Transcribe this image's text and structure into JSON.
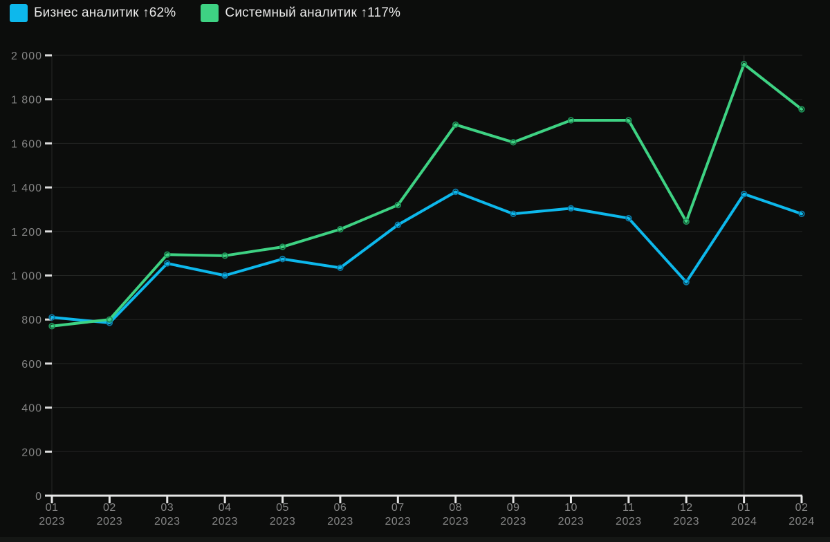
{
  "colors": {
    "background": "#0c0d0c",
    "grid_line": "#232523",
    "axis_line": "#e6e6e6",
    "tick_mark": "#dedede",
    "axis_label": "#858585",
    "legend_text": "#e9e9e9",
    "left_vertical_line": "#1e201f",
    "year_vertical_line": "#2c2e2d",
    "series_blue": "#0db8ec",
    "series_blue_ring": "#0a7aa6",
    "series_green": "#3ed283",
    "series_green_ring": "#1d9257"
  },
  "legend": {
    "items": [
      {
        "label": "Бизнес аналитик ↑62%",
        "color": "#0db8ec"
      },
      {
        "label": "Системный аналитик ↑117%",
        "color": "#3ed283"
      }
    ]
  },
  "chart_data": {
    "type": "line",
    "title": "",
    "xlabel": "",
    "ylabel": "",
    "ylim": [
      0,
      2000
    ],
    "ytick_step": 200,
    "ytick_labels": [
      "0",
      "200",
      "400",
      "600",
      "800",
      "1 000",
      "1 200",
      "1 400",
      "1 600",
      "1 800",
      "2 000"
    ],
    "grid": "horizontal gridlines every 200; faint vertical gridlines at first point and at 01 2024",
    "legend_position": "top-left",
    "x_months": [
      "01",
      "02",
      "03",
      "04",
      "05",
      "06",
      "07",
      "08",
      "09",
      "10",
      "11",
      "12",
      "01",
      "02"
    ],
    "x_years": [
      "2023",
      "2023",
      "2023",
      "2023",
      "2023",
      "2023",
      "2023",
      "2023",
      "2023",
      "2023",
      "2023",
      "2023",
      "2024",
      "2024"
    ],
    "year_separator_index": 12,
    "series": [
      {
        "name": "Бизнес аналитик",
        "growth": "↑62%",
        "color": "#0db8ec",
        "marker_ring_color": "#0a7aa6",
        "values": [
          810,
          785,
          1055,
          1000,
          1075,
          1035,
          1230,
          1380,
          1280,
          1305,
          1260,
          970,
          1370,
          1280
        ]
      },
      {
        "name": "Системный аналитик",
        "growth": "↑117%",
        "color": "#3ed283",
        "marker_ring_color": "#1d9257",
        "values": [
          770,
          800,
          1095,
          1090,
          1130,
          1210,
          1320,
          1685,
          1605,
          1705,
          1705,
          1245,
          1960,
          1755
        ]
      }
    ]
  }
}
